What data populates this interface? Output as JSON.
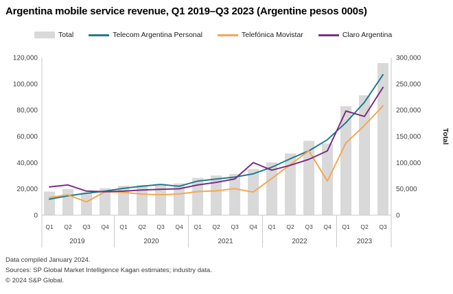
{
  "title": "Argentina mobile service revenue, Q1 2019–Q3 2023 (Argentine pesos 000s)",
  "legend": [
    {
      "label": "Total",
      "type": "bar",
      "color": "#d9d9d9"
    },
    {
      "label": "Telecom Argentina Personal",
      "type": "line",
      "color": "#1d7c8c"
    },
    {
      "label": "Telefónica Movistar",
      "type": "line",
      "color": "#f6a650"
    },
    {
      "label": "Claro Argentina",
      "type": "line",
      "color": "#7b2c83"
    }
  ],
  "chart_data": {
    "type": "bar+line",
    "categories": [
      "Q1",
      "Q2",
      "Q3",
      "Q4",
      "Q1",
      "Q2",
      "Q3",
      "Q4",
      "Q1",
      "Q2",
      "Q3",
      "Q4",
      "Q1",
      "Q2",
      "Q3",
      "Q4",
      "Q1",
      "Q2",
      "Q3"
    ],
    "year_groups": [
      {
        "label": "2019",
        "quarters": 4
      },
      {
        "label": "2020",
        "quarters": 4
      },
      {
        "label": "2021",
        "quarters": 4
      },
      {
        "label": "2022",
        "quarters": 4
      },
      {
        "label": "2023",
        "quarters": 3
      }
    ],
    "bar_series": {
      "name": "Total",
      "axis": "right",
      "color": "#d9d9d9",
      "values": [
        45000,
        50000,
        43500,
        51500,
        56000,
        57500,
        59500,
        60500,
        71000,
        75500,
        78500,
        88000,
        100500,
        117500,
        141500,
        136500,
        207500,
        228000,
        289500
      ]
    },
    "series": [
      {
        "name": "Telecom Argentina Personal",
        "axis": "left",
        "color": "#1d7c8c",
        "values": [
          12200,
          14700,
          16700,
          18300,
          20500,
          22000,
          23400,
          22000,
          26000,
          27500,
          29000,
          31500,
          36500,
          43000,
          49000,
          57500,
          70500,
          86000,
          107000
        ]
      },
      {
        "name": "Telefónica Movistar",
        "axis": "left",
        "color": "#f6a650",
        "values": [
          13400,
          15500,
          10100,
          17900,
          17300,
          16000,
          15600,
          16100,
          18000,
          18500,
          20200,
          17600,
          28000,
          38500,
          49000,
          26000,
          55000,
          68300,
          83200
        ]
      },
      {
        "name": "Claro Argentina",
        "axis": "left",
        "color": "#7b2c83",
        "values": [
          21500,
          23000,
          18300,
          17900,
          18300,
          19200,
          19700,
          20100,
          23000,
          25000,
          27600,
          40000,
          34300,
          38000,
          42500,
          49000,
          79300,
          75200,
          97300
        ]
      }
    ],
    "left_axis": {
      "min": 0,
      "max": 120000,
      "ticks": [
        0,
        20000,
        40000,
        60000,
        80000,
        100000,
        120000
      ]
    },
    "right_axis": {
      "min": 0,
      "max": 300000,
      "ticks": [
        0,
        50000,
        100000,
        150000,
        200000,
        250000,
        300000
      ],
      "label": "Total"
    },
    "grid": false,
    "legend_position": "top"
  },
  "footer": {
    "line1": "Data compiled January 2024.",
    "line2": "Sources: SP Global Market Intelligence Kagan estimates; industry data.",
    "line3": "© 2024 S&P Global."
  }
}
